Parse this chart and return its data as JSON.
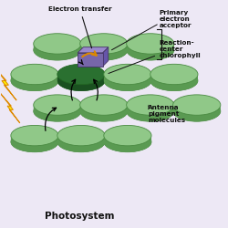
{
  "background_color": "#ede8f5",
  "labels": {
    "electron_transfer": "Electron transfer",
    "primary_electron_acceptor": "Primary\nelectron\nacceptor",
    "reaction_center": "Reaction-\ncenter\nchlorophyll",
    "antenna": "Antenna\npigment\nmolecules",
    "photosystem": "Photosystem"
  },
  "antenna_disc_color_top": "#90c888",
  "antenna_disc_color_side": "#5a9a52",
  "antenna_disc_outline": "#4a8a42",
  "reaction_disc_color_top": "#2a7030",
  "reaction_disc_color_side": "#1a5020",
  "acceptor_box_top": "#9988cc",
  "acceptor_box_front": "#7766aa",
  "acceptor_box_side": "#6655aa",
  "arrow_color_electron": "#dd8800",
  "arrow_color_energy": "#111111",
  "lightning_yellow": "#ffee00",
  "lightning_orange": "#dd8800",
  "label_color": "#111111",
  "bracket_color": "#333333"
}
